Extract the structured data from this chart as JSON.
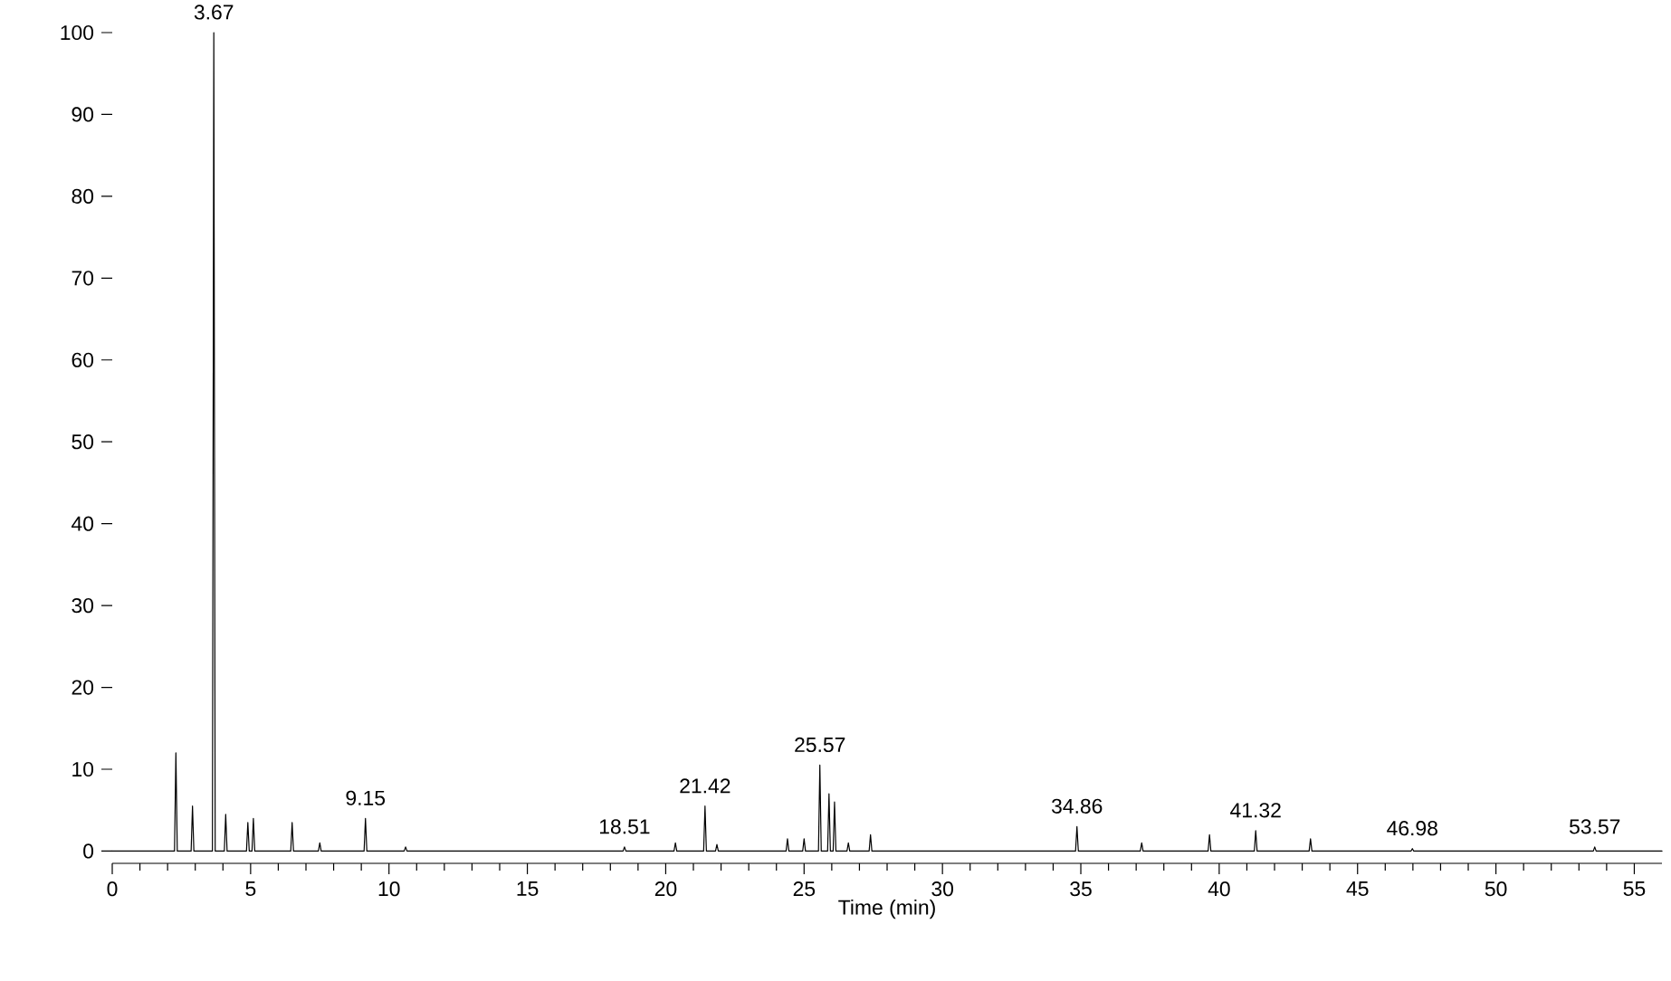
{
  "chart_data": {
    "type": "line",
    "xlabel": "Time (min)",
    "xlim": [
      0,
      56
    ],
    "xticks": [
      0,
      5,
      10,
      15,
      20,
      25,
      30,
      35,
      40,
      45,
      50,
      55
    ],
    "ylim": [
      -1.5,
      100
    ],
    "yticks": [
      0,
      10,
      20,
      30,
      40,
      50,
      60,
      70,
      80,
      90,
      100
    ],
    "series": [
      {
        "color": "#000000",
        "x": [
          0,
          2.25,
          2.3,
          2.35,
          2.85,
          2.9,
          2.95,
          3.62,
          3.67,
          3.72,
          4.05,
          4.1,
          4.15,
          4.85,
          4.9,
          4.95,
          5.05,
          5.1,
          5.15,
          6.45,
          6.5,
          6.55,
          7.45,
          7.5,
          7.55,
          9.1,
          9.15,
          9.2,
          10.55,
          10.6,
          10.65,
          18.46,
          18.51,
          18.56,
          20.3,
          20.35,
          20.4,
          21.37,
          21.42,
          21.47,
          21.8,
          21.85,
          21.9,
          24.35,
          24.4,
          24.45,
          24.95,
          25.0,
          25.05,
          25.52,
          25.57,
          25.62,
          25.85,
          25.9,
          25.95,
          26.05,
          26.1,
          26.15,
          26.55,
          26.6,
          26.65,
          27.35,
          27.4,
          27.45,
          34.81,
          34.86,
          34.91,
          37.15,
          37.2,
          37.25,
          39.6,
          39.65,
          39.7,
          41.27,
          41.32,
          41.37,
          43.25,
          43.3,
          43.35,
          46.93,
          46.98,
          47.03,
          53.52,
          53.57,
          53.62,
          56
        ],
        "values": [
          0,
          0,
          12,
          0,
          0,
          5.5,
          0,
          0,
          100,
          0,
          0,
          4.5,
          0,
          0,
          3.5,
          0,
          0,
          4,
          0,
          0,
          3.5,
          0,
          0,
          1,
          0,
          0,
          4,
          0,
          0,
          0.5,
          0,
          0,
          0.5,
          0,
          0,
          1,
          0,
          0,
          5.5,
          0,
          0,
          0.8,
          0,
          0,
          1.5,
          0,
          0,
          1.5,
          0,
          0,
          10.5,
          0,
          0,
          7,
          0,
          0,
          6,
          0,
          0,
          1,
          0,
          0,
          2,
          0,
          0,
          3,
          0,
          0,
          1,
          0,
          0,
          2,
          0,
          0,
          2.5,
          0,
          0,
          1.5,
          0,
          0,
          0.3,
          0,
          0,
          0.5,
          0,
          0
        ]
      }
    ],
    "annotations": [
      {
        "text": "3.67",
        "x": 3.67,
        "y": 100
      },
      {
        "text": "9.15",
        "x": 9.15,
        "y": 4
      },
      {
        "text": "18.51",
        "x": 18.51,
        "y": 0.5
      },
      {
        "text": "21.42",
        "x": 21.42,
        "y": 5.5
      },
      {
        "text": "25.57",
        "x": 25.57,
        "y": 10.5
      },
      {
        "text": "34.86",
        "x": 34.86,
        "y": 3
      },
      {
        "text": "41.32",
        "x": 41.32,
        "y": 2.5
      },
      {
        "text": "46.98",
        "x": 46.98,
        "y": 0.3
      },
      {
        "text": "53.57",
        "x": 53.57,
        "y": 0.5
      }
    ]
  }
}
